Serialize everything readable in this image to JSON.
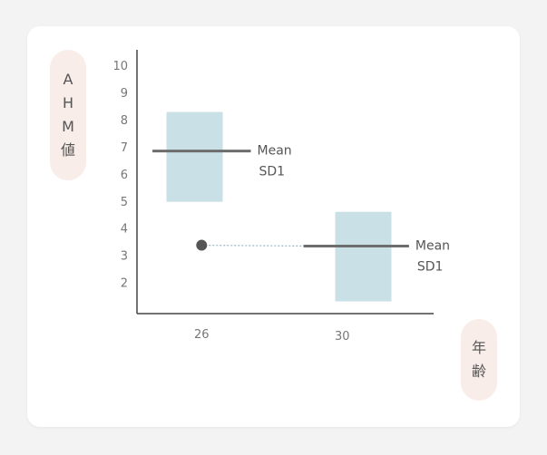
{
  "y_label_chars": [
    "A",
    "H",
    "M",
    "値"
  ],
  "x_label_chars": [
    "年",
    "齢"
  ],
  "chart_data": {
    "type": "box",
    "y_ticks": [
      2,
      3,
      4,
      5,
      6,
      7,
      8,
      9,
      10
    ],
    "x_ticks": [
      26,
      30
    ],
    "xlim": [
      24.16,
      32.6
    ],
    "ylim": [
      0.85,
      10.57
    ],
    "boxes": [
      {
        "x_range": [
          25.0,
          26.6
        ],
        "y_range": [
          4.97,
          8.28
        ],
        "mean": 6.84,
        "mean_line_x": [
          24.6,
          27.4
        ],
        "labels": [
          "Mean",
          "SD1"
        ]
      },
      {
        "x_range": [
          29.8,
          31.4
        ],
        "y_range": [
          1.3,
          4.6
        ],
        "mean": 3.34,
        "mean_line_x": [
          28.9,
          31.9
        ],
        "labels": [
          "Mean",
          "SD1"
        ]
      }
    ],
    "point": {
      "x": 26.0,
      "y": 3.37
    },
    "connector": {
      "from": [
        26.0,
        3.37
      ],
      "to": [
        28.9,
        3.34
      ]
    },
    "colors": {
      "box": "#c9e0e6",
      "mean_line": "#6d6d6d",
      "point": "#555555",
      "axis": "#444444",
      "connector": "#9ab6c6"
    }
  }
}
